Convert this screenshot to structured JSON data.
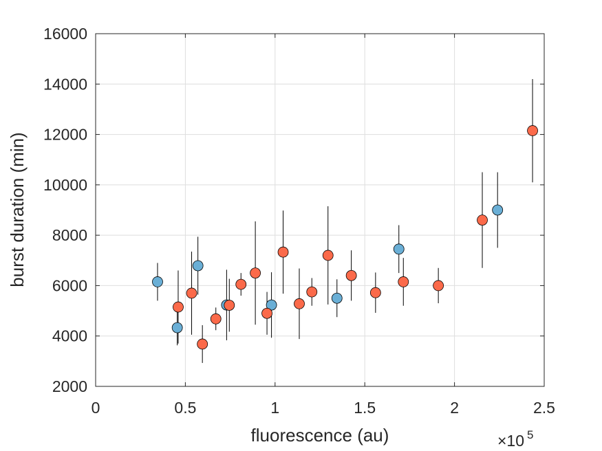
{
  "chart_data": {
    "type": "scatter",
    "title": "",
    "xlabel": "fluorescence (au)",
    "ylabel": "burst duration (min)",
    "x_multiplier": "×10",
    "x_multiplier_exponent": "5",
    "xlim": [
      0,
      2.5
    ],
    "ylim": [
      2000,
      16000
    ],
    "xticks": [
      "0",
      "0.5",
      "1",
      "1.5",
      "2",
      "2.5"
    ],
    "yticks": [
      "2000",
      "4000",
      "6000",
      "8000",
      "10000",
      "12000",
      "14000",
      "16000"
    ],
    "grid": true,
    "error_bars": true,
    "series": [
      {
        "color": "#6aafd6",
        "points": [
          {
            "x": 0.345,
            "y": 6150,
            "err": 750
          },
          {
            "x": 0.455,
            "y": 4330,
            "err": 700
          },
          {
            "x": 0.57,
            "y": 6790,
            "err": 1150
          },
          {
            "x": 0.73,
            "y": 5230,
            "err": 1400
          },
          {
            "x": 0.98,
            "y": 5230,
            "err": 1300
          },
          {
            "x": 1.345,
            "y": 5500,
            "err": 750
          },
          {
            "x": 1.69,
            "y": 7450,
            "err": 950
          },
          {
            "x": 2.24,
            "y": 9000,
            "err": 1500
          }
        ]
      },
      {
        "color": "#fb6a4a",
        "points": [
          {
            "x": 0.46,
            "y": 5150,
            "err": 1450
          },
          {
            "x": 0.535,
            "y": 5700,
            "err": 1650
          },
          {
            "x": 0.595,
            "y": 3680,
            "err": 750
          },
          {
            "x": 0.67,
            "y": 4680,
            "err": 450
          },
          {
            "x": 0.745,
            "y": 5220,
            "err": 1050
          },
          {
            "x": 0.81,
            "y": 6050,
            "err": 450
          },
          {
            "x": 0.89,
            "y": 6500,
            "err": 2050
          },
          {
            "x": 0.955,
            "y": 4900,
            "err": 850
          },
          {
            "x": 1.045,
            "y": 7330,
            "err": 1650
          },
          {
            "x": 1.135,
            "y": 5280,
            "err": 1400
          },
          {
            "x": 1.205,
            "y": 5750,
            "err": 550
          },
          {
            "x": 1.295,
            "y": 7200,
            "err": 1950
          },
          {
            "x": 1.425,
            "y": 6400,
            "err": 1000
          },
          {
            "x": 1.56,
            "y": 5720,
            "err": 800
          },
          {
            "x": 1.715,
            "y": 6150,
            "err": 950
          },
          {
            "x": 1.91,
            "y": 6000,
            "err": 700
          },
          {
            "x": 2.155,
            "y": 8600,
            "err": 1900
          },
          {
            "x": 2.435,
            "y": 12150,
            "err": 2050
          }
        ]
      }
    ]
  }
}
